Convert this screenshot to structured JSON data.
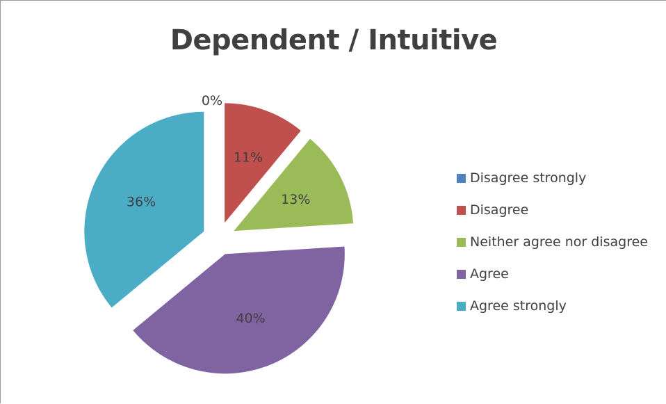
{
  "chart_data": {
    "type": "pie",
    "title": "Dependent / Intuitive",
    "categories": [
      "Disagree strongly",
      "Disagree",
      "Neither agree nor disagree",
      "Agree",
      "Agree strongly"
    ],
    "values": [
      0,
      11,
      13,
      40,
      36
    ],
    "labels": [
      "0%",
      "11%",
      "13%",
      "40%",
      "36%"
    ],
    "colors": [
      "#4F81BD",
      "#C0504D",
      "#9BBB59",
      "#8064A2",
      "#4BACC6"
    ],
    "exploded": true,
    "legend_position": "right"
  }
}
